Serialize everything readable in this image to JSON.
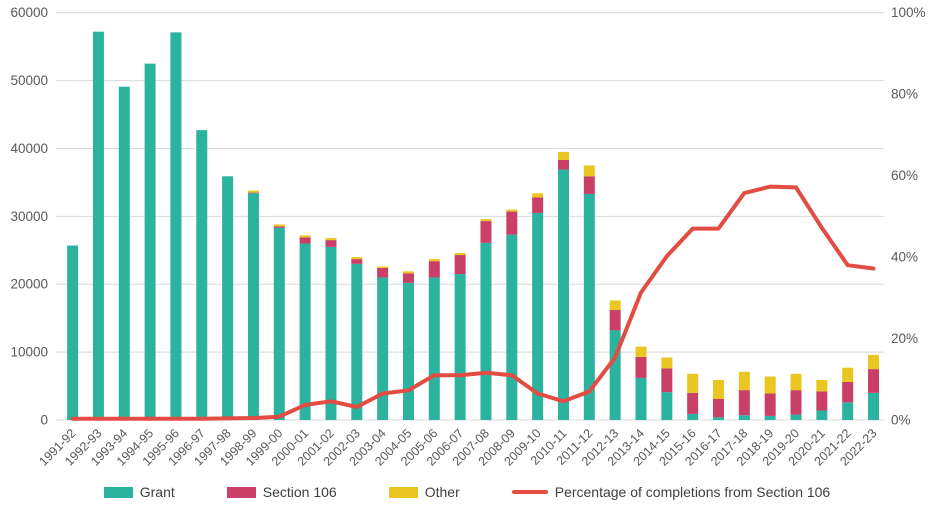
{
  "chart_data": {
    "type": "bar",
    "subtype": "stacked-bars-with-line",
    "title": "",
    "categories": [
      "1991-92",
      "1992-93",
      "1993-94",
      "1994-95",
      "1995-96",
      "1996-97",
      "1997-98",
      "1998-99",
      "1999-00",
      "2000-01",
      "2001-02",
      "2002-03",
      "2003-04",
      "2004-05",
      "2005-06",
      "2006-07",
      "2007-08",
      "2008-09",
      "2009-10",
      "2010-11",
      "2011-12",
      "2012-13",
      "2013-14",
      "2014-15",
      "2015-16",
      "2016-17",
      "2017-18",
      "2018-19",
      "2019-20",
      "2020-21",
      "2021-22",
      "2022-23"
    ],
    "series": [
      {
        "name": "Grant",
        "color": "#2BB3A0",
        "values": [
          25700,
          57200,
          49100,
          52500,
          57100,
          42700,
          35900,
          33400,
          28300,
          26000,
          25500,
          23000,
          21000,
          20200,
          21000,
          21500,
          26100,
          27300,
          30500,
          36900,
          33300,
          13200,
          6200,
          4100,
          900,
          400,
          700,
          600,
          800,
          1400,
          2600,
          4000
        ]
      },
      {
        "name": "Section 106",
        "color": "#C93F68",
        "values": [
          0,
          0,
          0,
          0,
          0,
          0,
          0,
          100,
          200,
          900,
          1000,
          700,
          1400,
          1400,
          2400,
          2800,
          3200,
          3400,
          2300,
          1400,
          2600,
          3000,
          3100,
          3500,
          3100,
          2700,
          3700,
          3300,
          3600,
          2800,
          3000,
          3500
        ]
      },
      {
        "name": "Other",
        "color": "#EAC622",
        "values": [
          0,
          0,
          0,
          0,
          0,
          0,
          0,
          300,
          300,
          300,
          300,
          300,
          200,
          300,
          300,
          300,
          300,
          300,
          600,
          1200,
          1600,
          1400,
          1500,
          1600,
          2800,
          2800,
          2700,
          2500,
          2400,
          1700,
          2100,
          2100
        ]
      }
    ],
    "line_series": {
      "name": "Percentage of completions from Section 106",
      "color": "#E24C43",
      "axis": "right",
      "values": [
        0.3,
        0.3,
        0.3,
        0.3,
        0.3,
        0.3,
        0.4,
        0.5,
        0.8,
        3.7,
        4.6,
        3.2,
        6.5,
        7.3,
        11.0,
        11.0,
        11.6,
        11.0,
        6.5,
        4.6,
        7.0,
        15.4,
        31.3,
        40.2,
        47.0,
        47.0,
        55.7,
        57.3,
        57.1,
        47.2,
        38.0,
        37.2
      ]
    },
    "left_axis": {
      "min": 0,
      "max": 60000,
      "step": 10000,
      "tick_labels": [
        "0",
        "10000",
        "20000",
        "30000",
        "40000",
        "50000",
        "60000"
      ]
    },
    "right_axis": {
      "min": 0,
      "max": 100,
      "step": 20,
      "tick_labels": [
        "0%",
        "20%",
        "40%",
        "60%",
        "80%",
        "100%"
      ]
    },
    "grid": true,
    "gridline_color": "#D9D9D9",
    "axis_text_color": "#595959",
    "legend_position": "bottom",
    "legend_labels": {
      "grant": "Grant",
      "section106": "Section 106",
      "other": "Other",
      "line": "Percentage of completions from Section 106"
    }
  }
}
